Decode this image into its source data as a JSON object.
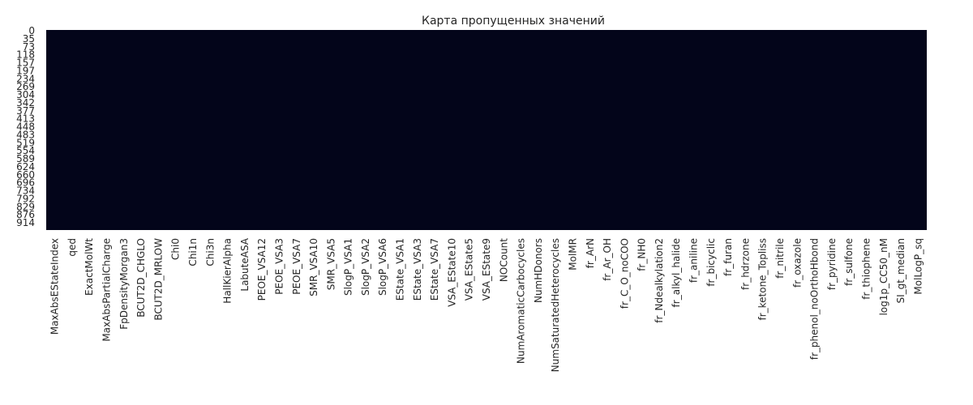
{
  "chart_data": {
    "type": "heatmap",
    "title": "Карта пропущенных значений",
    "xlabel": "",
    "ylabel": "",
    "colors": {
      "cell": "#03051a",
      "text": "#262626",
      "background": "#ffffff"
    },
    "missing_fraction": 0,
    "n_rows": 950,
    "x_tick_labels": [
      "MaxAbsEStateIndex",
      "qed",
      "ExactMolWt",
      "MaxAbsPartialCharge",
      "FpDensityMorgan3",
      "BCUT2D_CHGLO",
      "BCUT2D_MRLOW",
      "Chi0",
      "Chi1n",
      "Chi3n",
      "HallKierAlpha",
      "LabuteASA",
      "PEOE_VSA12",
      "PEOE_VSA3",
      "PEOE_VSA7",
      "SMR_VSA10",
      "SMR_VSA5",
      "SlogP_VSA1",
      "SlogP_VSA2",
      "SlogP_VSA6",
      "EState_VSA1",
      "EState_VSA3",
      "EState_VSA7",
      "VSA_EState10",
      "VSA_EState5",
      "VSA_EState9",
      "NOCount",
      "NumAromaticCarbocycles",
      "NumHDonors",
      "NumSaturatedHeterocycles",
      "MolMR",
      "fr_ArN",
      "fr_Ar_OH",
      "fr_C_O_noCOO",
      "fr_NH0",
      "fr_Ndealkylation2",
      "fr_alkyl_halide",
      "fr_aniline",
      "fr_bicyclic",
      "fr_furan",
      "fr_hdrzone",
      "fr_ketone_Topliss",
      "fr_nitrile",
      "fr_oxazole",
      "fr_phenol_noOrthoHbond",
      "fr_pyridine",
      "fr_sulfone",
      "fr_thiophene",
      "log1p_CC50_nM",
      "SI_gt_median",
      "MolLogP_sq"
    ],
    "y_tick_labels": [
      "0",
      "35",
      "73",
      "118",
      "157",
      "197",
      "234",
      "269",
      "304",
      "342",
      "377",
      "413",
      "448",
      "483",
      "519",
      "554",
      "589",
      "624",
      "660",
      "696",
      "734",
      "792",
      "829",
      "876",
      "914"
    ]
  }
}
